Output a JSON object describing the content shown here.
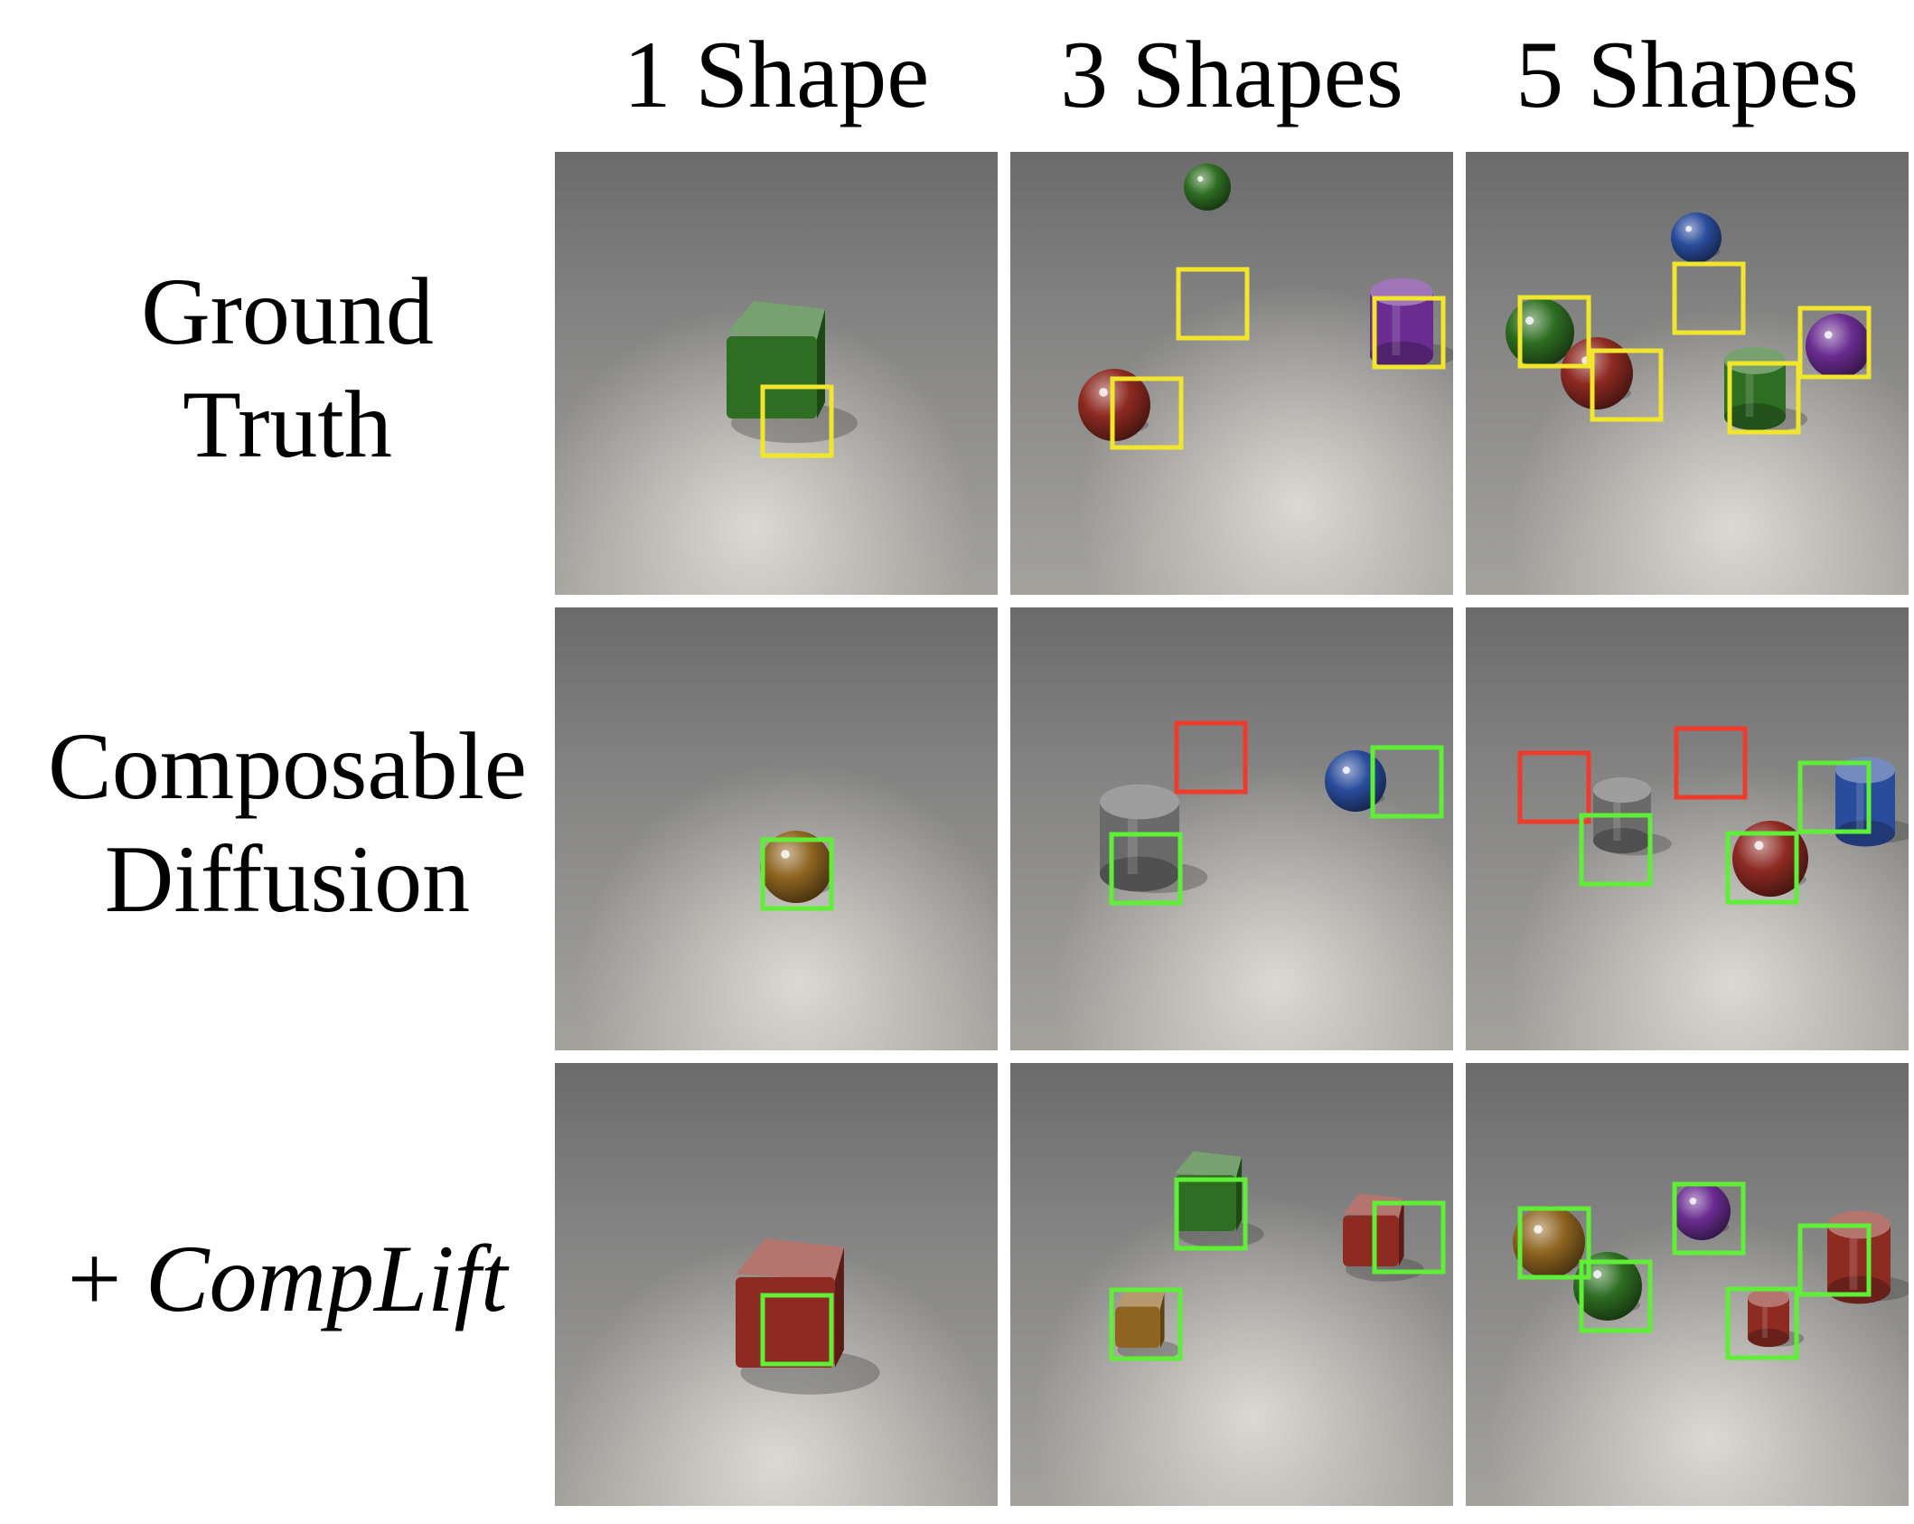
{
  "column_headers": [
    "1 Shape",
    "3 Shapes",
    "5 Shapes"
  ],
  "rows": [
    {
      "label_lines": [
        "Ground",
        "Truth"
      ],
      "prefix": "",
      "italic": ""
    },
    {
      "label_lines": [
        "Composable",
        "Diffusion"
      ],
      "prefix": "",
      "italic": ""
    },
    {
      "label_lines": [],
      "prefix": "+ ",
      "italic": "CompLift"
    }
  ],
  "box_colors": {
    "ground_truth": "#f2e62c",
    "correct": "#5fef36",
    "missing": "#ee3b2b"
  },
  "object_colors": {
    "green": "#2e6e22",
    "red": "#8d2a22",
    "purple": "#6a2c90",
    "blue": "#2a4c9c",
    "gold": "#8e6420",
    "gray": "#6a6a6a"
  }
}
